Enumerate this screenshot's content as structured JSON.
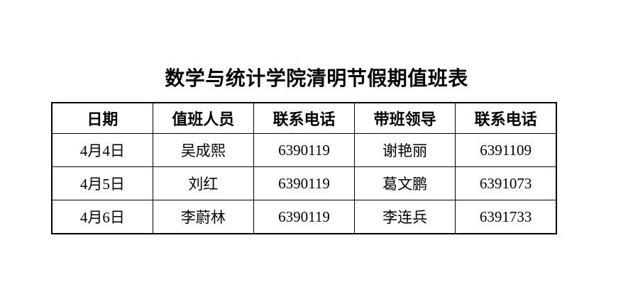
{
  "title": "数学与统计学院清明节假期值班表",
  "colors": {
    "background": "#ffffff",
    "text": "#000000",
    "border": "#000000"
  },
  "table": {
    "headers": [
      "日期",
      "值班人员",
      "联系电话",
      "带班领导",
      "联系电话"
    ],
    "rows": [
      [
        "4月4日",
        "吴成熙",
        "6390119",
        "谢艳丽",
        "6391109"
      ],
      [
        "4月5日",
        "刘红",
        "6390119",
        "葛文鹏",
        "6391073"
      ],
      [
        "4月6日",
        "李蔚林",
        "6390119",
        "李连兵",
        "6391733"
      ]
    ]
  }
}
